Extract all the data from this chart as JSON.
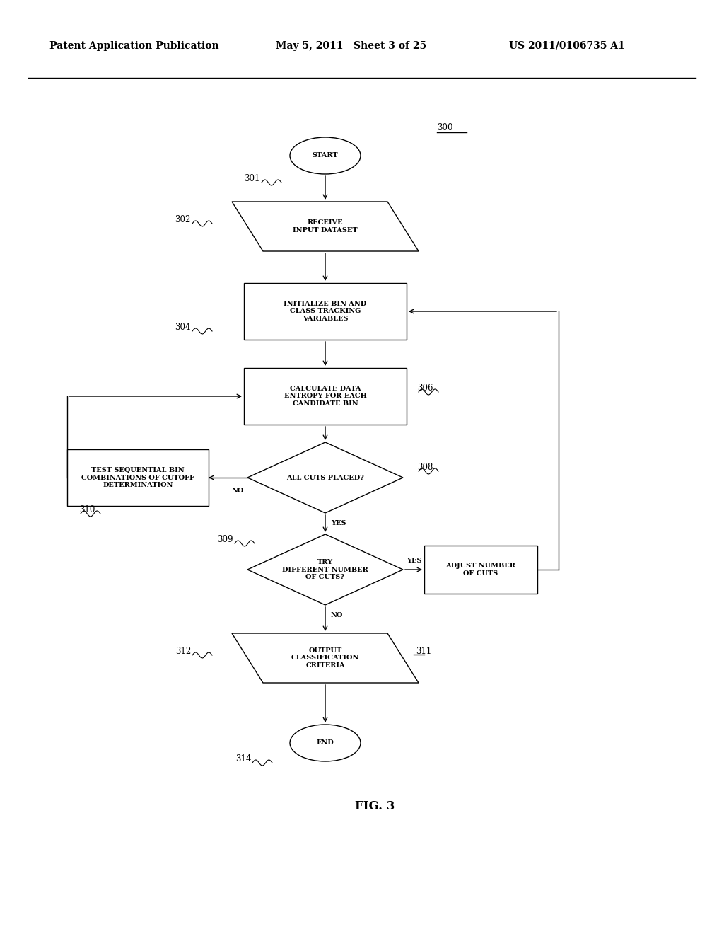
{
  "bg_color": "#ffffff",
  "header_left": "Patent Application Publication",
  "header_mid": "May 5, 2011   Sheet 3 of 25",
  "header_right": "US 2011/0106735 A1",
  "fig_label": "FIG. 3",
  "lw": 1.0,
  "fc": "white",
  "ec": "black",
  "fs_shape": 7.0,
  "fs_ref": 8.0,
  "fs_label": 7.0
}
